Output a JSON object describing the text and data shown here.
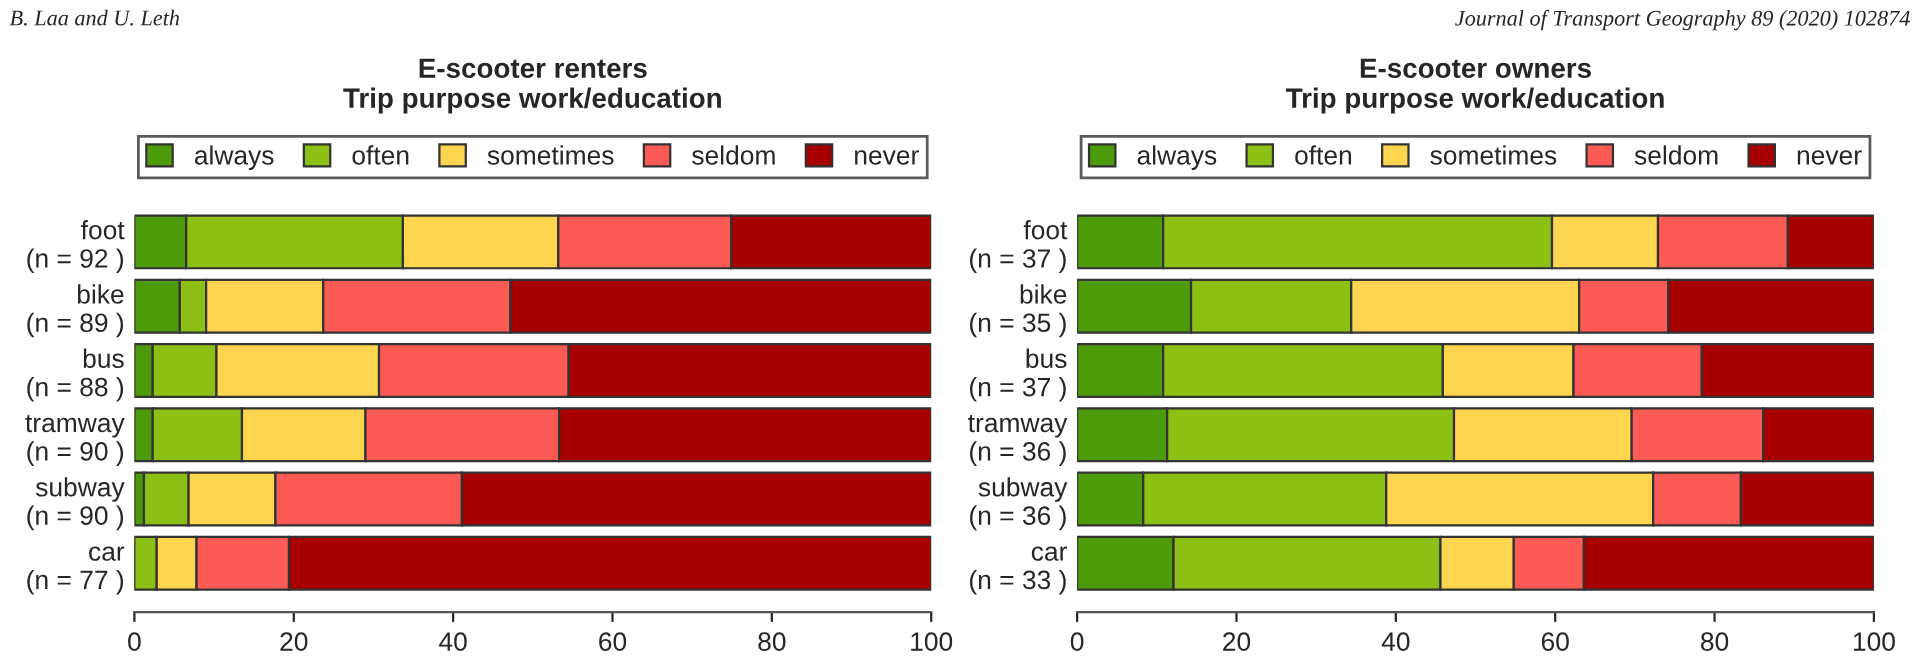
{
  "chart_data": [
    {
      "type": "bar",
      "orientation": "horizontal",
      "stacked": true,
      "title": "E-scooter renters\nTrip purpose work/education",
      "categories": [
        "foot\n(n = 92 )",
        "bike\n(n = 89 )",
        "bus\n(n = 88 )",
        "tramway\n(n = 90 )",
        "subway\n(n = 90 )",
        "car\n(n = 77 )"
      ],
      "series": [
        {
          "name": "always",
          "color": "#4d9a0a",
          "values": [
            6.5,
            5.7,
            2.3,
            2.3,
            1.2,
            0
          ]
        },
        {
          "name": "often",
          "color": "#8cc014",
          "values": [
            27.2,
            3.3,
            8.0,
            11.2,
            5.6,
            2.8
          ]
        },
        {
          "name": "sometimes",
          "color": "#fdd54e",
          "values": [
            19.5,
            14.7,
            20.4,
            15.5,
            10.9,
            5.0
          ]
        },
        {
          "name": "seldom",
          "color": "#fc5a55",
          "values": [
            21.7,
            23.5,
            23.8,
            24.3,
            23.4,
            11.6
          ]
        },
        {
          "name": "never",
          "color": "#a80000",
          "values": [
            25.1,
            52.8,
            45.5,
            46.7,
            58.9,
            80.6
          ]
        }
      ],
      "xlim": [
        0,
        100
      ],
      "xticks": [
        0,
        20,
        40,
        60,
        80,
        100
      ],
      "legend": "top",
      "annotations": [
        "B. Laa and U. Leth"
      ]
    },
    {
      "type": "bar",
      "orientation": "horizontal",
      "stacked": true,
      "title": "E-scooter owners\nTrip purpose work/education",
      "categories": [
        "foot\n(n = 37 )",
        "bike\n(n = 35 )",
        "bus\n(n = 37 )",
        "tramway\n(n = 36 )",
        "subway\n(n = 36 )",
        "car\n(n = 33 )"
      ],
      "series": [
        {
          "name": "always",
          "color": "#4d9a0a",
          "values": [
            10.8,
            14.3,
            10.8,
            11.3,
            8.3,
            12.1
          ]
        },
        {
          "name": "often",
          "color": "#8cc014",
          "values": [
            48.8,
            20.1,
            35.1,
            36.0,
            30.5,
            33.5
          ]
        },
        {
          "name": "sometimes",
          "color": "#fdd54e",
          "values": [
            13.3,
            28.6,
            16.4,
            22.3,
            33.5,
            9.2
          ]
        },
        {
          "name": "seldom",
          "color": "#fc5a55",
          "values": [
            16.3,
            11.2,
            16.1,
            16.5,
            11.0,
            8.8
          ]
        },
        {
          "name": "never",
          "color": "#a80000",
          "values": [
            10.8,
            25.8,
            21.6,
            13.9,
            16.7,
            36.4
          ]
        }
      ],
      "xlim": [
        0,
        100
      ],
      "xticks": [
        0,
        20,
        40,
        60,
        80,
        100
      ],
      "legend": "top",
      "annotations": [
        "Journal of Transport Geography 89 (2020) 102874"
      ]
    }
  ]
}
